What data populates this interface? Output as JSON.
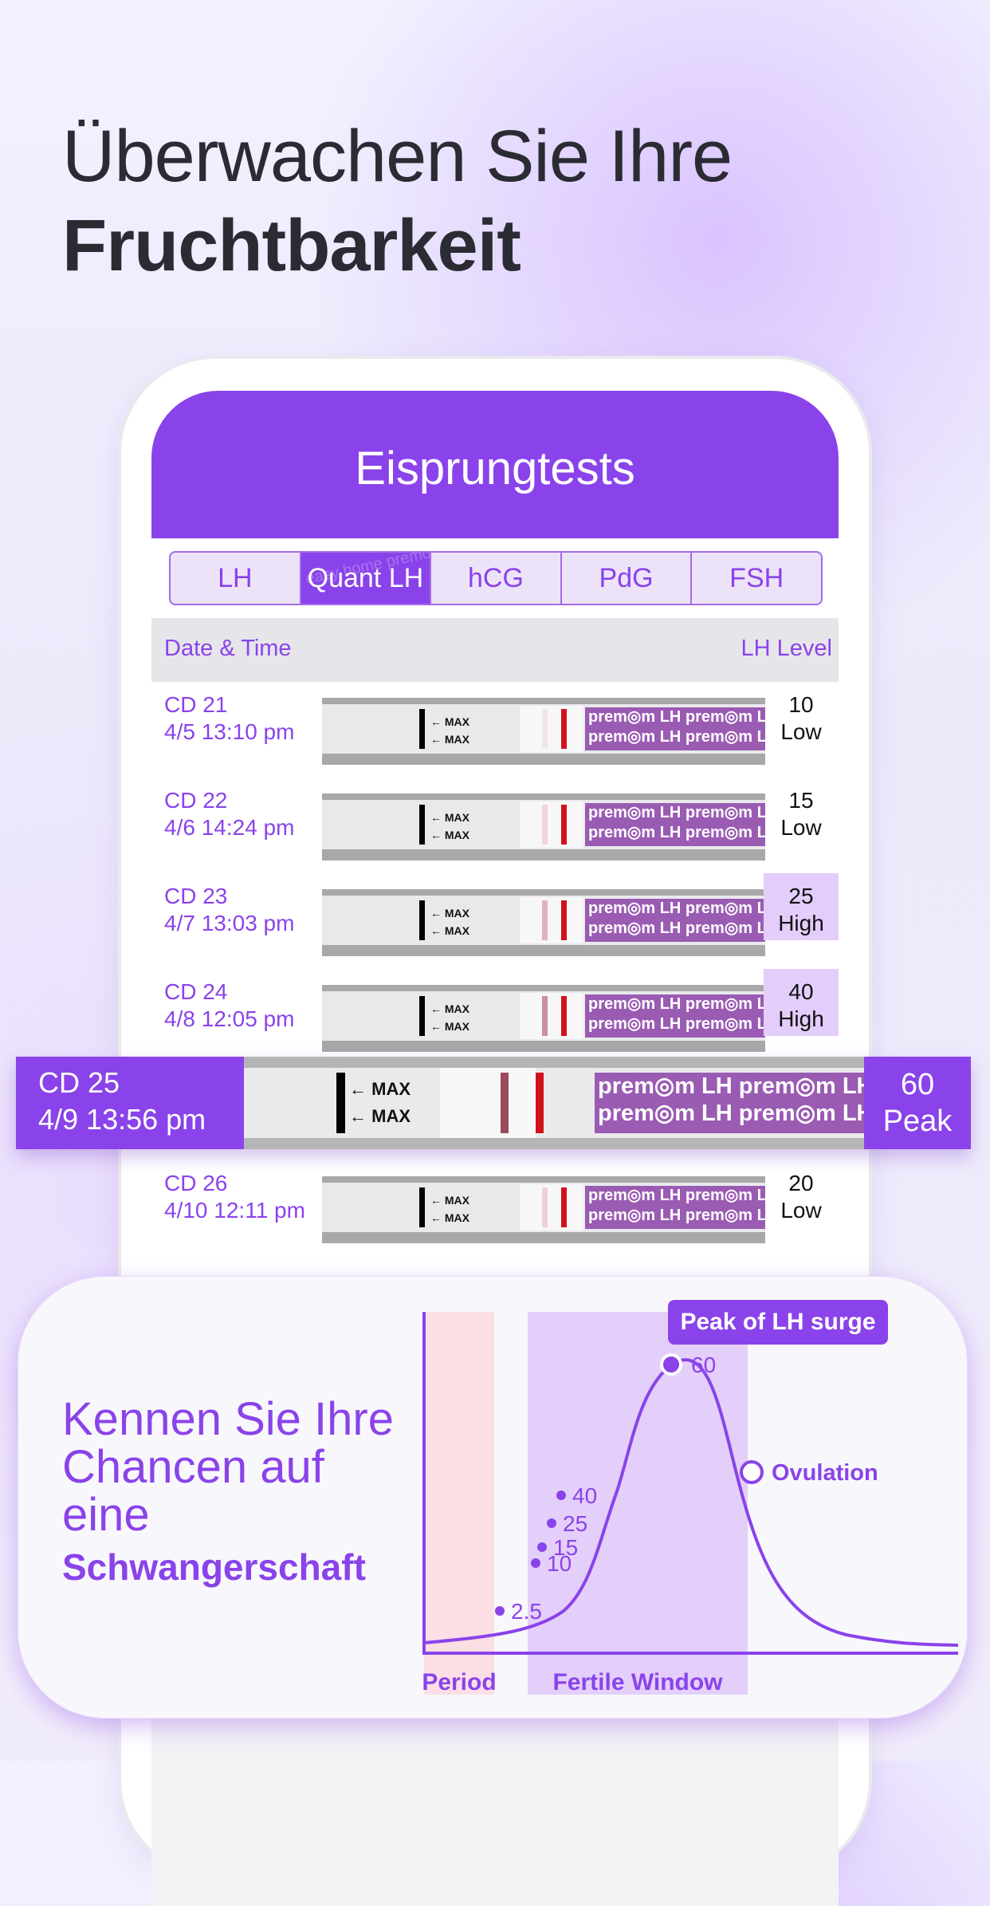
{
  "headline": {
    "line1": "Überwachen Sie Ihre",
    "line2": "Fruchtbarkeit"
  },
  "app": {
    "title": "Eisprungtests",
    "tabs": [
      {
        "label": "LH",
        "active": false
      },
      {
        "label": "Quant LH",
        "active": true
      },
      {
        "label": "hCG",
        "active": false
      },
      {
        "label": "PdG",
        "active": false
      },
      {
        "label": "FSH",
        "active": false
      }
    ],
    "columns": {
      "date_time": "Date & Time",
      "lh_level": "LH Level"
    },
    "strip_text": {
      "max": "← MAX",
      "brand": "prem◎m LH prem◎m LH",
      "watermark": "easy home premom"
    },
    "rows": [
      {
        "cd": "CD 21",
        "datetime": "4/5 13:10 pm",
        "value": "10",
        "status": "Low",
        "highlight": false
      },
      {
        "cd": "CD 22",
        "datetime": "4/6 14:24 pm",
        "value": "15",
        "status": "Low",
        "highlight": false
      },
      {
        "cd": "CD 23",
        "datetime": "4/7 13:03 pm",
        "value": "25",
        "status": "High",
        "highlight": true
      },
      {
        "cd": "CD 24",
        "datetime": "4/8 12:05 pm",
        "value": "40",
        "status": "High",
        "highlight": true
      },
      {
        "cd": "CD 26",
        "datetime": "4/10 12:11 pm",
        "value": "20",
        "status": "Low",
        "highlight": false
      }
    ],
    "featured_row": {
      "cd": "CD 25",
      "datetime": "4/9 13:56 pm",
      "value": "60",
      "status": "Peak"
    }
  },
  "card": {
    "title": "Kennen Sie Ihre Chancen auf eine",
    "subtitle": "Schwangerschaft"
  },
  "chart_data": {
    "type": "line",
    "series": [
      {
        "values": [
          2.5,
          10,
          15,
          25,
          40,
          60
        ]
      }
    ],
    "point_labels": [
      "2.5",
      "10",
      "15",
      "25",
      "40",
      "60"
    ],
    "annotations": {
      "peak": "Peak of LH surge",
      "ovulation": "Ovulation"
    },
    "bands": [
      {
        "label": "Period",
        "color": "#fbdfe4"
      },
      {
        "label": "Fertile Window",
        "color": "#e4cffa"
      }
    ]
  },
  "colors": {
    "accent": "#8a43ea",
    "highlight": "#e3cdfb",
    "strip_brand": "#9a5bb3"
  }
}
